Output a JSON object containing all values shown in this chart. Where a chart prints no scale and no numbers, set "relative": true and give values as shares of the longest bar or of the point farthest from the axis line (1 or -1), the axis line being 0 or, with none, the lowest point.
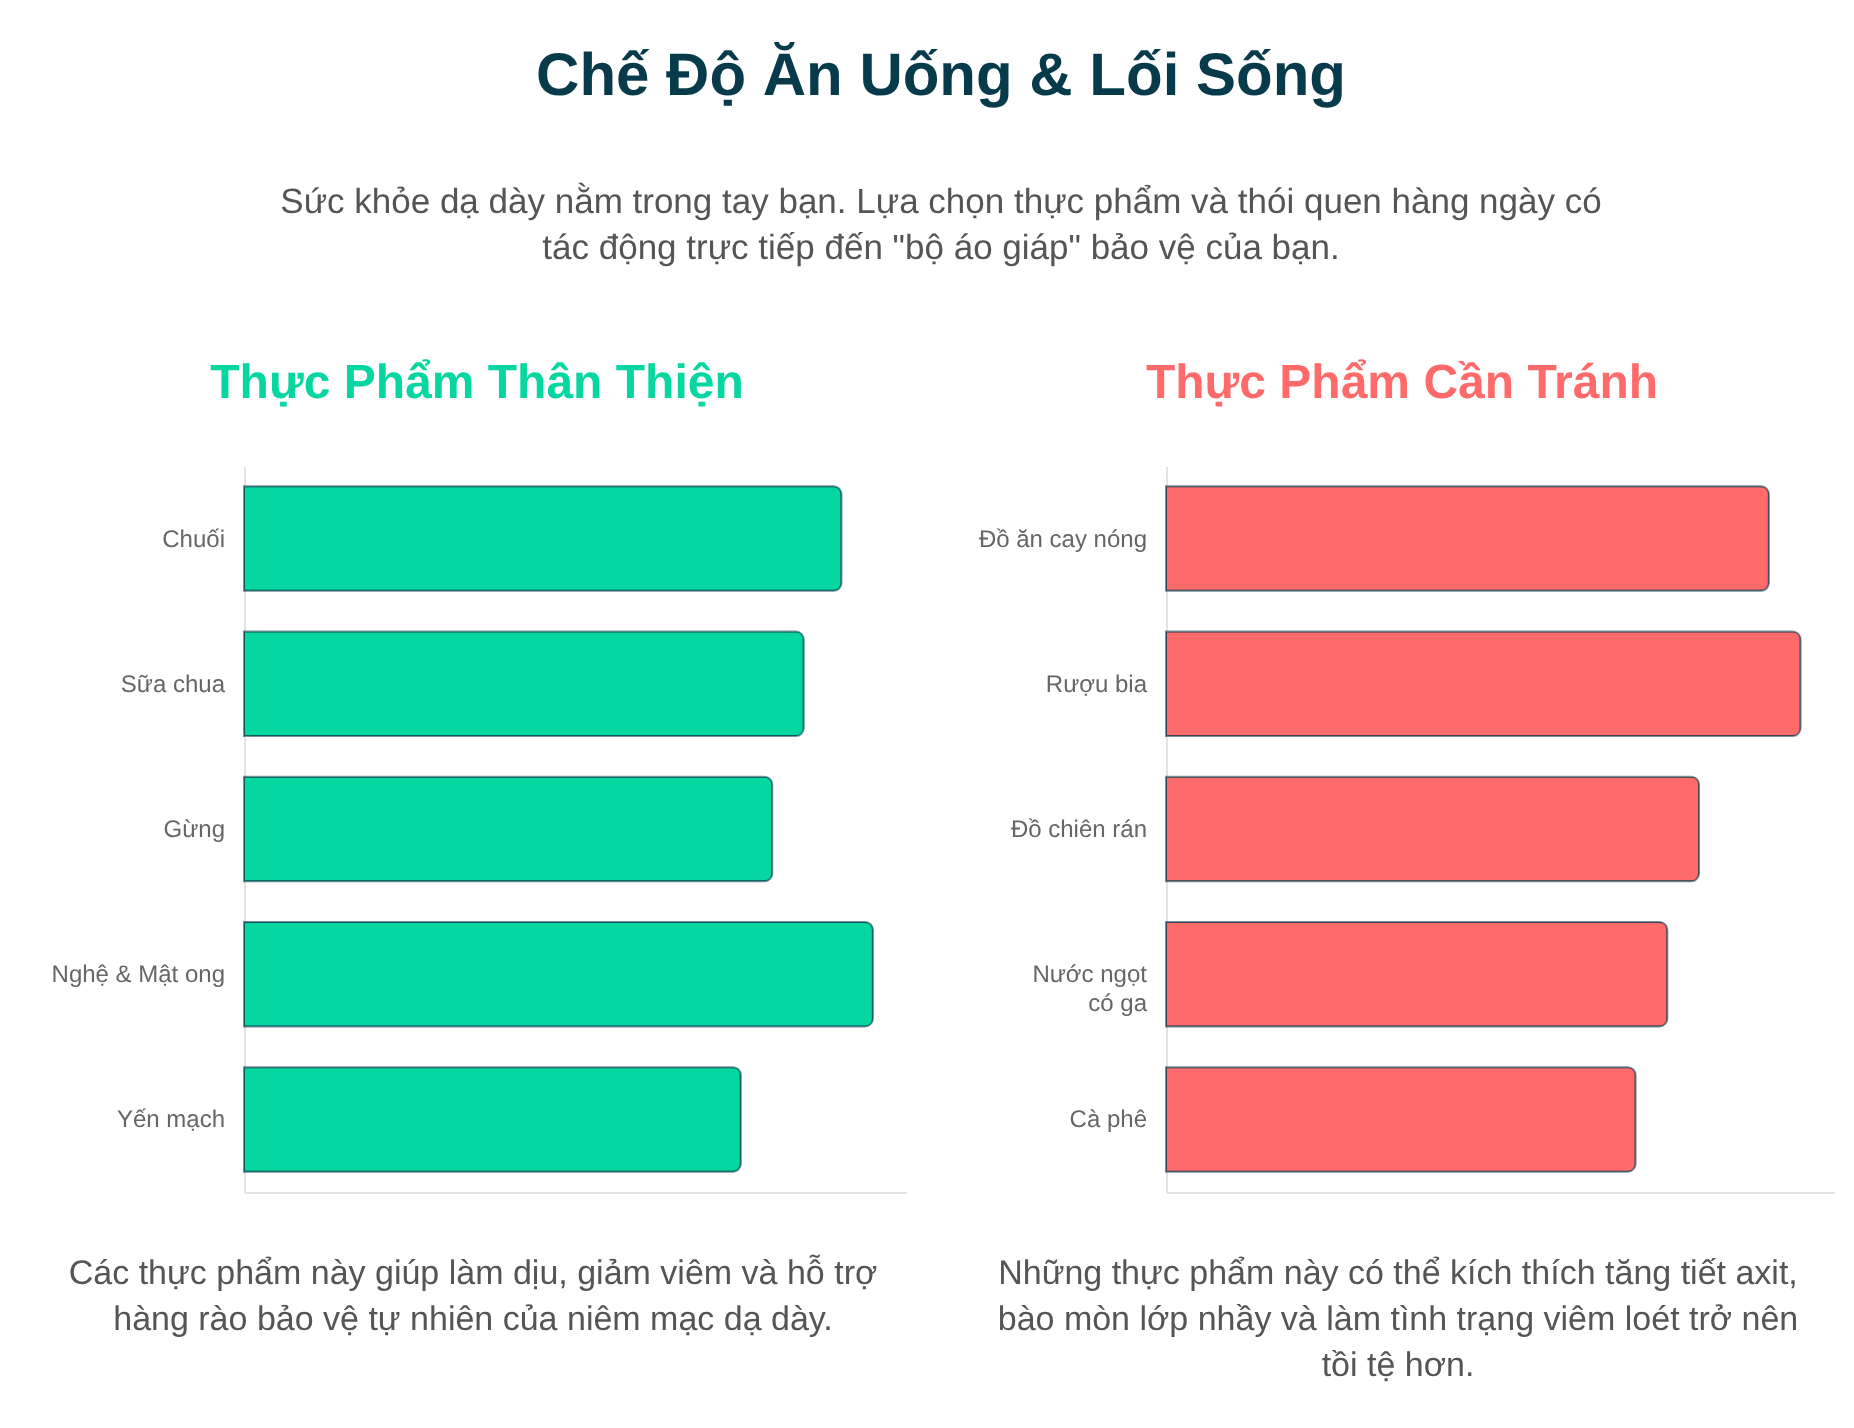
{
  "chart_data": [
    {
      "type": "other",
      "title": "Chế Độ Ăn Uống & Lối Sống",
      "subtitle": "Sức khỏe dạ dày nằm trong tay bạn. Lựa chọn thực phẩm và thói quen hàng ngày có tác động trực tiếp đến \"bộ áo giáp\" bảo vệ của bạn."
    },
    {
      "type": "bar",
      "orientation": "horizontal",
      "relative": true,
      "title": "Thực Phẩm Thân Thiện",
      "categories": [
        "Chuối",
        "Sữa chua",
        "Gừng",
        "Nghệ & Mật ong",
        "Yến mạch"
      ],
      "values": [
        0.95,
        0.89,
        0.84,
        1,
        0.79
      ],
      "color": "#06d6a0",
      "annotations": [
        "Các thực phẩm này giúp làm dịu, giảm viêm và hỗ trợ hàng rào bảo vệ tự nhiên của niêm mạc dạ dày."
      ]
    },
    {
      "type": "bar",
      "orientation": "horizontal",
      "relative": true,
      "title": "Thực Phẩm Cần Tránh",
      "categories": [
        "Đồ ăn cay nóng",
        "Rượu bia",
        "Đồ chiên rán",
        "Nước ngọt có ga",
        "Cà phê"
      ],
      "values": [
        0.95,
        1,
        0.84,
        0.79,
        0.74
      ],
      "color": "#ff6b6b",
      "annotations": [
        "Những thực phẩm này có thể kích thích tăng tiết axit, bào mòn lớp nhầy và làm tình trạng viêm loét trở nên tồi tệ hơn."
      ]
    }
  ]
}
